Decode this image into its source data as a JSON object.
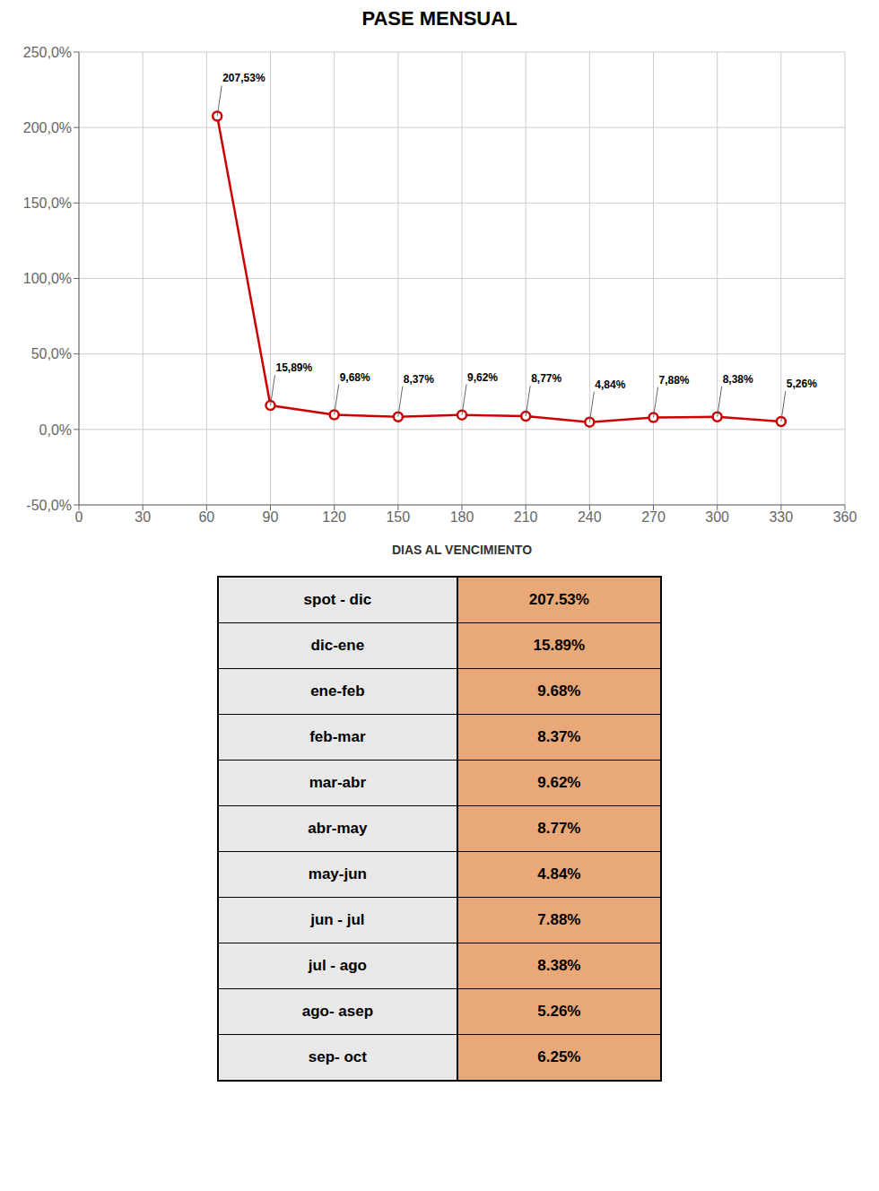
{
  "chart_data": [
    {
      "type": "line",
      "title": "PASE MENSUAL",
      "x_label": "DIAS AL VENCIMIENTO",
      "x": [
        65,
        90,
        120,
        150,
        180,
        210,
        240,
        270,
        300,
        330
      ],
      "values": [
        207.53,
        15.89,
        9.68,
        8.37,
        9.62,
        8.77,
        4.84,
        7.88,
        8.38,
        5.26
      ],
      "value_labels": [
        "207,53%",
        "15,89%",
        "9,68%",
        "8,37%",
        "9,62%",
        "8,77%",
        "4,84%",
        "7,88%",
        "8,38%",
        "5,26%"
      ],
      "data_labels": true,
      "color": "#CC0000",
      "marker": "circle",
      "xlim": [
        0,
        360
      ],
      "xticks": [
        0,
        30,
        60,
        90,
        120,
        150,
        180,
        210,
        240,
        270,
        300,
        330,
        360
      ],
      "ylim": [
        -50,
        250
      ],
      "yticks": [
        {
          "value": -50,
          "label": "-50,0%"
        },
        {
          "value": 0,
          "label": "0,0%"
        },
        {
          "value": 50,
          "label": "50,0%"
        },
        {
          "value": 100,
          "label": "100,0%"
        },
        {
          "value": 150,
          "label": "150,0%"
        },
        {
          "value": 200,
          "label": "200,0%"
        },
        {
          "value": 250,
          "label": "250,0%"
        }
      ],
      "grid": true
    },
    {
      "type": "table",
      "categories": [
        "spot - dic",
        "dic-ene",
        "ene-feb",
        "feb-mar",
        "mar-abr",
        "abr-may",
        "may-jun",
        "jun - jul",
        "jul - ago",
        "ago- asep",
        "sep- oct"
      ],
      "values": [
        207.53,
        15.89,
        9.68,
        8.37,
        9.62,
        8.77,
        4.84,
        7.88,
        8.38,
        5.26,
        6.25
      ],
      "value_labels": [
        "207.53%",
        "15.89%",
        "9.68%",
        "8.37%",
        "9.62%",
        "8.77%",
        "4.84%",
        "7.88%",
        "8.38%",
        "5.26%",
        "6.25%"
      ],
      "colors": [
        "#E8E8E8",
        "#E8A878"
      ]
    }
  ]
}
